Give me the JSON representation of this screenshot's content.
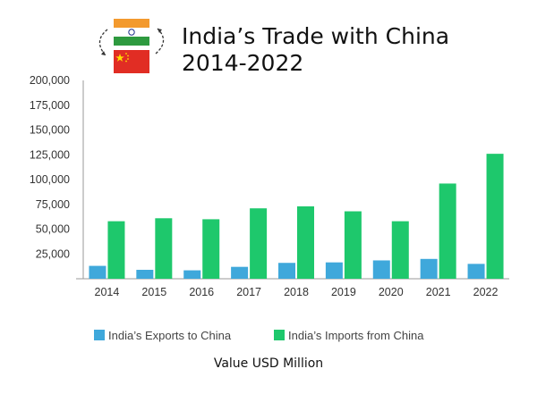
{
  "chart_data": {
    "type": "bar",
    "title_line1": "India’s Trade with China",
    "title_line2": "2014-2022",
    "categories": [
      "2014",
      "2015",
      "2016",
      "2017",
      "2018",
      "2019",
      "2020",
      "2021",
      "2022"
    ],
    "series": [
      {
        "name": "India’s Exports to China",
        "color": "#3fa8db",
        "values": [
          13000,
          9000,
          8500,
          12000,
          16000,
          16500,
          18500,
          20000,
          15000
        ]
      },
      {
        "name": "India’s Imports from China",
        "color": "#1ec86c",
        "values": [
          58000,
          61000,
          60000,
          71000,
          73000,
          68000,
          58000,
          96000,
          126000
        ]
      }
    ],
    "ylim": [
      0,
      200000
    ],
    "yticks": [
      25000,
      50000,
      75000,
      100000,
      125000,
      150000,
      175000,
      200000
    ],
    "ytick_labels": [
      "25,000",
      "50,000",
      "75,000",
      "100,000",
      "125,000",
      "150,000",
      "175,000",
      "200,000"
    ],
    "xlabel": "Value USD Million",
    "legend_position": "bottom"
  },
  "flags": {
    "top": "India flag",
    "bottom": "China flag"
  }
}
